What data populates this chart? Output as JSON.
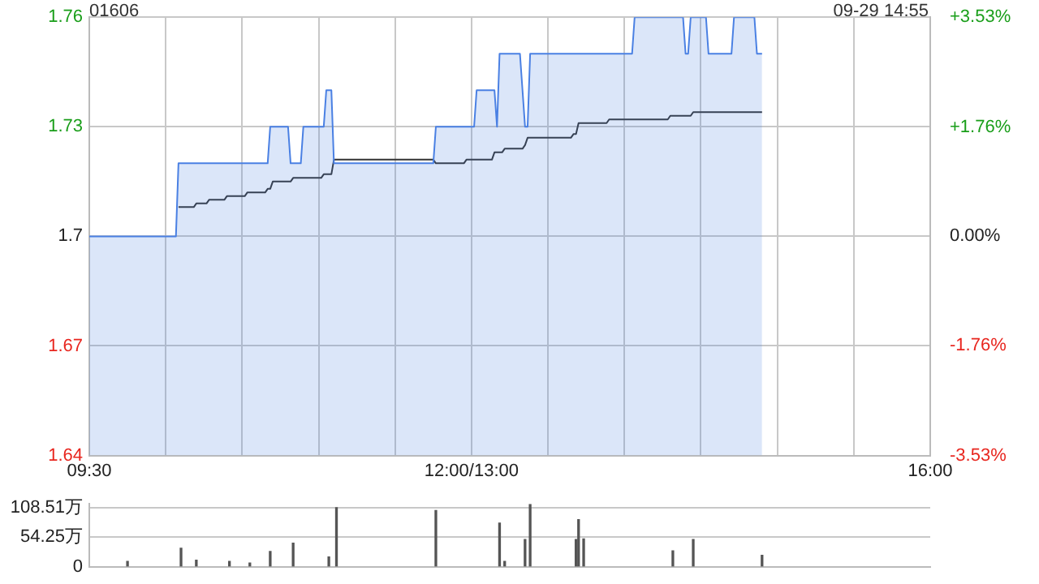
{
  "chart_data": [
    {
      "type": "line",
      "title": "01606",
      "annotations": [
        "09-29 14:55"
      ],
      "categories": [
        "09:30",
        null,
        null,
        null,
        null,
        null,
        null,
        null,
        null,
        null,
        null,
        null,
        null,
        null,
        null,
        null,
        null,
        null,
        null,
        null,
        null,
        null,
        null,
        null,
        null,
        null,
        null,
        null,
        null,
        null,
        null,
        null,
        null,
        null,
        null,
        null,
        null,
        null,
        null,
        null,
        null,
        null,
        null,
        null,
        null,
        null,
        null,
        null,
        null,
        null,
        null,
        null,
        null,
        null,
        null,
        null,
        null,
        null,
        null,
        null,
        null,
        null,
        null,
        null,
        null,
        null,
        null,
        null,
        null,
        null,
        null,
        null,
        null,
        null,
        null,
        null,
        null,
        null,
        null,
        null,
        null,
        null,
        null,
        null,
        null,
        null,
        null,
        null,
        null,
        null,
        null,
        null,
        null,
        null,
        null,
        null,
        null,
        null,
        null,
        null,
        null,
        null,
        null,
        null,
        null,
        null,
        null,
        null,
        null,
        null,
        null,
        null,
        null,
        null,
        null,
        null,
        null,
        null,
        null,
        null,
        null,
        null,
        null,
        null,
        null,
        null,
        null,
        null,
        null,
        null,
        null,
        null,
        null,
        null,
        null,
        null,
        null,
        null,
        null,
        null,
        null,
        null,
        null,
        null,
        null,
        null,
        null,
        null,
        null,
        null,
        "12:00/13:00",
        null,
        null,
        null,
        null,
        null,
        null,
        null,
        null,
        null,
        null,
        null,
        null,
        null,
        null,
        null,
        null,
        null,
        null,
        null,
        null,
        null,
        null,
        null,
        null,
        null,
        null,
        null,
        null,
        null,
        null,
        null,
        null,
        null,
        null,
        null,
        null,
        null,
        null,
        null,
        null,
        null,
        null,
        null,
        null,
        null,
        null,
        null,
        null,
        null,
        null,
        null,
        null,
        null,
        null,
        null,
        null,
        null,
        null,
        null,
        null,
        null,
        null,
        null,
        null,
        null,
        null,
        null,
        null,
        null,
        null,
        null,
        null,
        null,
        null,
        null,
        null,
        null,
        null,
        null,
        null,
        null,
        null,
        null,
        null,
        null,
        null,
        null,
        null,
        null,
        null,
        null,
        null,
        null,
        null,
        null,
        null,
        null,
        null,
        null,
        null,
        null,
        null,
        null,
        null,
        null,
        null,
        null,
        null,
        null,
        null,
        null,
        null,
        null,
        null,
        null,
        null,
        null,
        null,
        null,
        null,
        null,
        null,
        null,
        null,
        null,
        null,
        null,
        null,
        null,
        null,
        null,
        null,
        null,
        null,
        null,
        null,
        null,
        null,
        null,
        null,
        null,
        null,
        null,
        null,
        null,
        null,
        null,
        null,
        null,
        null,
        null,
        null,
        null,
        null,
        null,
        null,
        null,
        null,
        null,
        null,
        null,
        null,
        null,
        null,
        null,
        null,
        null,
        null,
        null,
        null,
        null,
        null,
        null,
        null,
        null,
        null,
        null,
        null,
        null,
        "16:00"
      ],
      "ylim": [
        1.64,
        1.76
      ],
      "yticks": [
        1.64,
        1.67,
        1.7,
        1.73,
        1.76
      ],
      "y2lim": [
        -3.53,
        3.53
      ],
      "y2ticks": [
        {
          "value": -3.53,
          "label": "-3.53%"
        },
        {
          "value": -1.76,
          "label": "-1.76%"
        },
        {
          "value": 0,
          "label": "0.00%"
        },
        {
          "value": 1.76,
          "label": "+1.76%"
        },
        {
          "value": 3.53,
          "label": "+3.53%"
        }
      ],
      "grid": true,
      "legend": false,
      "marker": "none",
      "series": [
        {
          "type": "area",
          "color": "#4a80e3",
          "values": [
            1.7,
            1.7,
            1.7,
            1.7,
            1.7,
            1.7,
            1.7,
            1.7,
            1.7,
            1.7,
            1.7,
            1.7,
            1.7,
            1.7,
            1.7,
            1.7,
            1.7,
            1.7,
            1.7,
            1.7,
            1.7,
            1.7,
            1.7,
            1.7,
            1.7,
            1.7,
            1.7,
            1.7,
            1.7,
            1.7,
            1.7,
            1.7,
            1.7,
            1.7,
            1.7,
            1.72,
            1.72,
            1.72,
            1.72,
            1.72,
            1.72,
            1.72,
            1.72,
            1.72,
            1.72,
            1.72,
            1.72,
            1.72,
            1.72,
            1.72,
            1.72,
            1.72,
            1.72,
            1.72,
            1.72,
            1.72,
            1.72,
            1.72,
            1.72,
            1.72,
            1.72,
            1.72,
            1.72,
            1.72,
            1.72,
            1.72,
            1.72,
            1.72,
            1.72,
            1.72,
            1.72,
            1.73,
            1.73,
            1.73,
            1.73,
            1.73,
            1.73,
            1.73,
            1.73,
            1.72,
            1.72,
            1.72,
            1.72,
            1.72,
            1.73,
            1.73,
            1.73,
            1.73,
            1.73,
            1.73,
            1.73,
            1.73,
            1.73,
            1.74,
            1.74,
            1.74,
            1.72,
            1.72,
            1.72,
            1.72,
            1.72,
            1.72,
            1.72,
            1.72,
            1.72,
            1.72,
            1.72,
            1.72,
            1.72,
            1.72,
            1.72,
            1.72,
            1.72,
            1.72,
            1.72,
            1.72,
            1.72,
            1.72,
            1.72,
            1.72,
            1.72,
            1.72,
            1.72,
            1.72,
            1.72,
            1.72,
            1.72,
            1.72,
            1.72,
            1.72,
            1.72,
            1.72,
            1.72,
            1.72,
            1.72,
            1.72,
            1.73,
            1.73,
            1.73,
            1.73,
            1.73,
            1.73,
            1.73,
            1.73,
            1.73,
            1.73,
            1.73,
            1.73,
            1.73,
            1.73,
            1.73,
            1.73,
            1.74,
            1.74,
            1.74,
            1.74,
            1.74,
            1.74,
            1.74,
            1.74,
            1.73,
            1.75,
            1.75,
            1.75,
            1.75,
            1.75,
            1.75,
            1.75,
            1.75,
            1.75,
            1.74,
            1.73,
            1.73,
            1.75,
            1.75,
            1.75,
            1.75,
            1.75,
            1.75,
            1.75,
            1.75,
            1.75,
            1.75,
            1.75,
            1.75,
            1.75,
            1.75,
            1.75,
            1.75,
            1.75,
            1.75,
            1.75,
            1.75,
            1.75,
            1.75,
            1.75,
            1.75,
            1.75,
            1.75,
            1.75,
            1.75,
            1.75,
            1.75,
            1.75,
            1.75,
            1.75,
            1.75,
            1.75,
            1.75,
            1.75,
            1.75,
            1.75,
            1.75,
            1.75,
            1.76,
            1.76,
            1.76,
            1.76,
            1.76,
            1.76,
            1.76,
            1.76,
            1.76,
            1.76,
            1.76,
            1.76,
            1.76,
            1.76,
            1.76,
            1.76,
            1.76,
            1.76,
            1.76,
            1.76,
            1.75,
            1.75,
            1.76,
            1.76,
            1.76,
            1.76,
            1.76,
            1.76,
            1.76,
            1.75,
            1.75,
            1.75,
            1.75,
            1.75,
            1.75,
            1.75,
            1.75,
            1.75,
            1.75,
            1.76,
            1.76,
            1.76,
            1.76,
            1.76,
            1.76,
            1.76,
            1.76,
            1.76,
            1.75,
            1.75,
            1.75,
            null,
            null,
            null,
            null,
            null,
            null,
            null,
            null,
            null,
            null,
            null,
            null,
            null,
            null,
            null,
            null,
            null,
            null,
            null,
            null,
            null,
            null,
            null,
            null,
            null,
            null,
            null,
            null,
            null,
            null,
            null,
            null,
            null,
            null,
            null,
            null,
            null,
            null,
            null,
            null,
            null,
            null,
            null,
            null,
            null,
            null,
            null,
            null,
            null,
            null,
            null,
            null,
            null,
            null,
            null,
            null,
            null,
            null,
            null,
            null,
            null,
            null,
            null,
            null,
            null,
            null
          ]
        },
        {
          "color": "#333333",
          "values": [
            null,
            null,
            null,
            null,
            null,
            null,
            null,
            null,
            null,
            null,
            null,
            null,
            null,
            null,
            null,
            null,
            null,
            null,
            null,
            null,
            null,
            null,
            null,
            null,
            null,
            null,
            null,
            null,
            null,
            null,
            null,
            null,
            null,
            null,
            null,
            1.708,
            1.708,
            1.708,
            1.708,
            1.708,
            1.708,
            1.708,
            1.709,
            1.709,
            1.709,
            1.709,
            1.709,
            1.71,
            1.71,
            1.71,
            1.71,
            1.71,
            1.71,
            1.71,
            1.711,
            1.711,
            1.711,
            1.711,
            1.711,
            1.711,
            1.711,
            1.711,
            1.712,
            1.712,
            1.712,
            1.712,
            1.712,
            1.712,
            1.712,
            1.712,
            1.713,
            1.713,
            1.715,
            1.715,
            1.715,
            1.715,
            1.715,
            1.715,
            1.715,
            1.715,
            1.716,
            1.716,
            1.716,
            1.716,
            1.716,
            1.716,
            1.716,
            1.716,
            1.716,
            1.716,
            1.716,
            1.716,
            1.717,
            1.717,
            1.717,
            1.717,
            1.721,
            1.721,
            1.721,
            1.721,
            1.721,
            1.721,
            1.721,
            1.721,
            1.721,
            1.721,
            1.721,
            1.721,
            1.721,
            1.721,
            1.721,
            1.721,
            1.721,
            1.721,
            1.721,
            1.721,
            1.721,
            1.721,
            1.721,
            1.721,
            1.721,
            1.721,
            1.721,
            1.721,
            1.721,
            1.721,
            1.721,
            1.721,
            1.721,
            1.721,
            1.721,
            1.721,
            1.721,
            1.721,
            1.721,
            1.721,
            1.72,
            1.72,
            1.72,
            1.72,
            1.72,
            1.72,
            1.72,
            1.72,
            1.72,
            1.72,
            1.72,
            1.72,
            1.721,
            1.721,
            1.721,
            1.721,
            1.721,
            1.721,
            1.721,
            1.721,
            1.721,
            1.721,
            1.721,
            1.723,
            1.723,
            1.723,
            1.723,
            1.724,
            1.724,
            1.724,
            1.724,
            1.724,
            1.724,
            1.724,
            1.724,
            1.725,
            1.727,
            1.727,
            1.727,
            1.727,
            1.727,
            1.727,
            1.727,
            1.727,
            1.727,
            1.727,
            1.727,
            1.727,
            1.727,
            1.727,
            1.727,
            1.727,
            1.727,
            1.727,
            1.728,
            1.728,
            1.731,
            1.731,
            1.731,
            1.731,
            1.731,
            1.731,
            1.731,
            1.731,
            1.731,
            1.731,
            1.731,
            1.731,
            1.732,
            1.732,
            1.732,
            1.732,
            1.732,
            1.732,
            1.732,
            1.732,
            1.732,
            1.732,
            1.732,
            1.732,
            1.732,
            1.732,
            1.732,
            1.732,
            1.732,
            1.732,
            1.732,
            1.732,
            1.732,
            1.732,
            1.732,
            1.732,
            1.733,
            1.733,
            1.733,
            1.733,
            1.733,
            1.733,
            1.733,
            1.733,
            1.733,
            1.734,
            1.734,
            1.734,
            1.734,
            1.734,
            1.734,
            1.734,
            1.734,
            1.734,
            1.734,
            1.734,
            1.734,
            1.734,
            1.734,
            1.734,
            1.734,
            1.734,
            1.734,
            1.734,
            1.734,
            1.734,
            1.734,
            1.734,
            1.734,
            1.734,
            1.734,
            1.734,
            1.734,
            null,
            null,
            null,
            null,
            null,
            null,
            null,
            null,
            null,
            null,
            null,
            null,
            null,
            null,
            null,
            null,
            null,
            null,
            null,
            null,
            null,
            null,
            null,
            null,
            null,
            null,
            null,
            null,
            null,
            null,
            null,
            null,
            null,
            null,
            null,
            null,
            null,
            null,
            null,
            null,
            null,
            null,
            null,
            null,
            null,
            null,
            null,
            null,
            null,
            null,
            null,
            null,
            null,
            null,
            null,
            null,
            null,
            null,
            null,
            null,
            null,
            null,
            null,
            null,
            null,
            null
          ]
        }
      ]
    },
    {
      "type": "bar",
      "tick_labels": "y",
      "categories": [
        null,
        null,
        null,
        null,
        null,
        null,
        null,
        null,
        null,
        null,
        null,
        null,
        null,
        null,
        null,
        null,
        null,
        null,
        null,
        null,
        null,
        null,
        null,
        null,
        null,
        null,
        null,
        null,
        null,
        null,
        null,
        null,
        null,
        null,
        null,
        null,
        null,
        null,
        null,
        null,
        null,
        null,
        null,
        null,
        null,
        null,
        null,
        null,
        null,
        null,
        null,
        null,
        null,
        null,
        null,
        null,
        null,
        null,
        null,
        null,
        null,
        null,
        null,
        null,
        null,
        null,
        null,
        null,
        null,
        null,
        null,
        null,
        null,
        null,
        null,
        null,
        null,
        null,
        null,
        null,
        null,
        null,
        null,
        null,
        null,
        null,
        null,
        null,
        null,
        null,
        null,
        null,
        null,
        null,
        null,
        null,
        null,
        null,
        null,
        null,
        null,
        null,
        null,
        null,
        null,
        null,
        null,
        null,
        null,
        null,
        null,
        null,
        null,
        null,
        null,
        null,
        null,
        null,
        null,
        null,
        null,
        null,
        null,
        null,
        null,
        null,
        null,
        null,
        null,
        null,
        null,
        null,
        null,
        null,
        null,
        null,
        null,
        null,
        null,
        null,
        null,
        null,
        null,
        null,
        null,
        null,
        null,
        null,
        null,
        null,
        null,
        null,
        null,
        null,
        null,
        null,
        null,
        null,
        null,
        null,
        null,
        null,
        null,
        null,
        null,
        null,
        null,
        null,
        null,
        null,
        null,
        null,
        null,
        null,
        null,
        null,
        null,
        null,
        null,
        null,
        null,
        null,
        null,
        null,
        null,
        null,
        null,
        null,
        null,
        null,
        null,
        null,
        null,
        null,
        null,
        null,
        null,
        null,
        null,
        null,
        null,
        null,
        null,
        null,
        null,
        null,
        null,
        null,
        null,
        null,
        null,
        null,
        null,
        null,
        null,
        null,
        null,
        null,
        null,
        null,
        null,
        null,
        null,
        null,
        null,
        null,
        null,
        null,
        null,
        null,
        null,
        null,
        null,
        null,
        null,
        null,
        null,
        null,
        null,
        null,
        null,
        null,
        null,
        null,
        null,
        null,
        null,
        null,
        null,
        null,
        null,
        null,
        null,
        null,
        null,
        null,
        null,
        null,
        null,
        null,
        null,
        null,
        null,
        null,
        null,
        null,
        null,
        null,
        null,
        null,
        null,
        null,
        null,
        null,
        null,
        null,
        null,
        null,
        null,
        null,
        null,
        null,
        null,
        null,
        null,
        null,
        null,
        null,
        null,
        null,
        null,
        null,
        null,
        null,
        null,
        null,
        null,
        null,
        null,
        null,
        null,
        null,
        null,
        null,
        null,
        null,
        null,
        null,
        null,
        null,
        null,
        null,
        null,
        null,
        null,
        null,
        null,
        null,
        null,
        null,
        null,
        null,
        null,
        null,
        null,
        null,
        null,
        null,
        null,
        null,
        null
      ],
      "ylim": [
        0,
        115
      ],
      "yticks": [
        0,
        {
          "value": 54.25,
          "label": "54.25万"
        },
        {
          "value": 108.51,
          "label": "108.51万"
        }
      ],
      "grid": "y",
      "legend": false,
      "color": "#555555",
      "values": [
        null,
        null,
        null,
        null,
        null,
        null,
        null,
        null,
        null,
        null,
        null,
        null,
        null,
        null,
        null,
        10,
        null,
        null,
        null,
        null,
        null,
        null,
        null,
        null,
        null,
        null,
        null,
        null,
        null,
        null,
        null,
        null,
        null,
        null,
        null,
        null,
        34,
        null,
        null,
        null,
        null,
        null,
        12,
        null,
        null,
        null,
        null,
        null,
        null,
        null,
        null,
        null,
        null,
        null,
        null,
        10,
        null,
        null,
        null,
        null,
        null,
        null,
        null,
        7,
        null,
        null,
        null,
        null,
        null,
        null,
        null,
        28,
        null,
        null,
        null,
        null,
        null,
        null,
        null,
        null,
        43,
        null,
        null,
        null,
        null,
        null,
        null,
        null,
        null,
        null,
        null,
        null,
        null,
        null,
        18,
        null,
        null,
        108,
        null,
        null,
        null,
        null,
        null,
        null,
        null,
        null,
        null,
        null,
        null,
        null,
        null,
        null,
        null,
        null,
        null,
        null,
        null,
        null,
        null,
        null,
        null,
        null,
        null,
        null,
        null,
        null,
        null,
        null,
        null,
        null,
        null,
        null,
        null,
        null,
        null,
        null,
        103,
        null,
        null,
        null,
        null,
        null,
        null,
        null,
        null,
        null,
        null,
        null,
        null,
        null,
        null,
        null,
        null,
        null,
        null,
        null,
        null,
        null,
        null,
        null,
        null,
        80,
        null,
        10,
        null,
        null,
        null,
        null,
        null,
        null,
        null,
        50,
        null,
        114,
        null,
        null,
        null,
        null,
        null,
        null,
        null,
        null,
        null,
        null,
        null,
        null,
        null,
        null,
        null,
        null,
        null,
        50,
        86,
        null,
        51,
        null,
        null,
        null,
        null,
        null,
        null,
        null,
        null,
        null,
        null,
        null,
        null,
        null,
        null,
        null,
        null,
        null,
        null,
        null,
        null,
        null,
        null,
        null,
        null,
        null,
        null,
        null,
        null,
        null,
        null,
        null,
        null,
        null,
        null,
        29,
        null,
        null,
        null,
        null,
        null,
        null,
        null,
        50,
        null,
        null,
        null,
        null,
        null,
        null,
        null,
        null,
        null,
        null,
        null,
        null,
        null,
        null,
        null,
        null,
        null,
        null,
        null,
        null,
        null,
        null,
        null,
        null,
        null,
        null,
        21,
        null,
        null,
        null,
        null,
        null,
        null,
        null,
        null,
        null,
        null,
        null,
        null,
        null,
        null,
        null,
        null,
        null,
        null,
        null,
        null,
        null,
        null,
        null,
        null,
        null,
        null,
        null,
        null,
        null,
        null,
        null,
        null,
        null,
        null,
        null,
        null,
        null,
        null,
        null,
        null,
        null,
        null,
        null,
        null,
        null,
        null,
        null,
        null,
        null,
        null,
        null,
        null,
        null,
        null,
        null,
        null,
        null,
        null,
        null,
        null,
        null,
        null,
        null,
        null,
        null,
        null
      ]
    }
  ]
}
